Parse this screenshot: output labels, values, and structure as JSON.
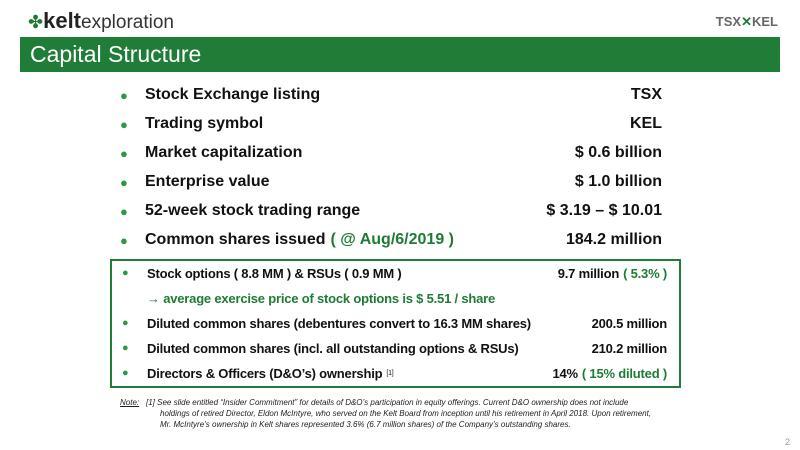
{
  "header": {
    "logo_brand": "kelt",
    "logo_word": "exploration",
    "exchange": "TSX",
    "symbol": "KEL",
    "title": "Capital Structure"
  },
  "main_list": [
    {
      "label": "Stock Exchange listing",
      "value": "TSX"
    },
    {
      "label": "Trading symbol",
      "value": "KEL"
    },
    {
      "label": "Market capitalization",
      "value": "$ 0.6 billion"
    },
    {
      "label": "Enterprise value",
      "value": "$ 1.0 billion"
    },
    {
      "label": "52-week stock trading range",
      "value": "$ 3.19 – $ 10.01"
    },
    {
      "label": "Common shares issued",
      "highlight": "( @ Aug/6/2019 )",
      "value": "184.2 million"
    }
  ],
  "box_list": [
    {
      "label": "Stock options ( 8.8 MM ) & RSUs ( 0.9 MM )",
      "value": "9.7 million",
      "highlight": "( 5.3% )"
    },
    {
      "sub": "→ average exercise price of stock options is $ 5.51 / share"
    },
    {
      "label": "Diluted common shares (debentures convert to 16.3 MM shares)",
      "value": "200.5 million"
    },
    {
      "label": "Diluted common shares (incl. all outstanding options & RSUs)",
      "value": "210.2 million"
    },
    {
      "label": "Directors & Officers (D&O’s) ownership",
      "ref": "[1]",
      "value": "14%",
      "highlight": "( 15% diluted )"
    }
  ],
  "note": {
    "heading": "Note:",
    "lines": [
      "[1] See slide entitled “Insider Commitment” for details of D&O’s participation in equity offerings. Current D&O ownership does not include",
      "holdings of retired Director, Eldon McIntyre, who served on the Kelt Board from inception until his retirement in April 2018. Upon retirement,",
      "Mr. McIntyre’s ownership in Kelt shares represented 3.6% (6.7 million shares) of the Company’s outstanding shares."
    ]
  },
  "page_number": "2"
}
